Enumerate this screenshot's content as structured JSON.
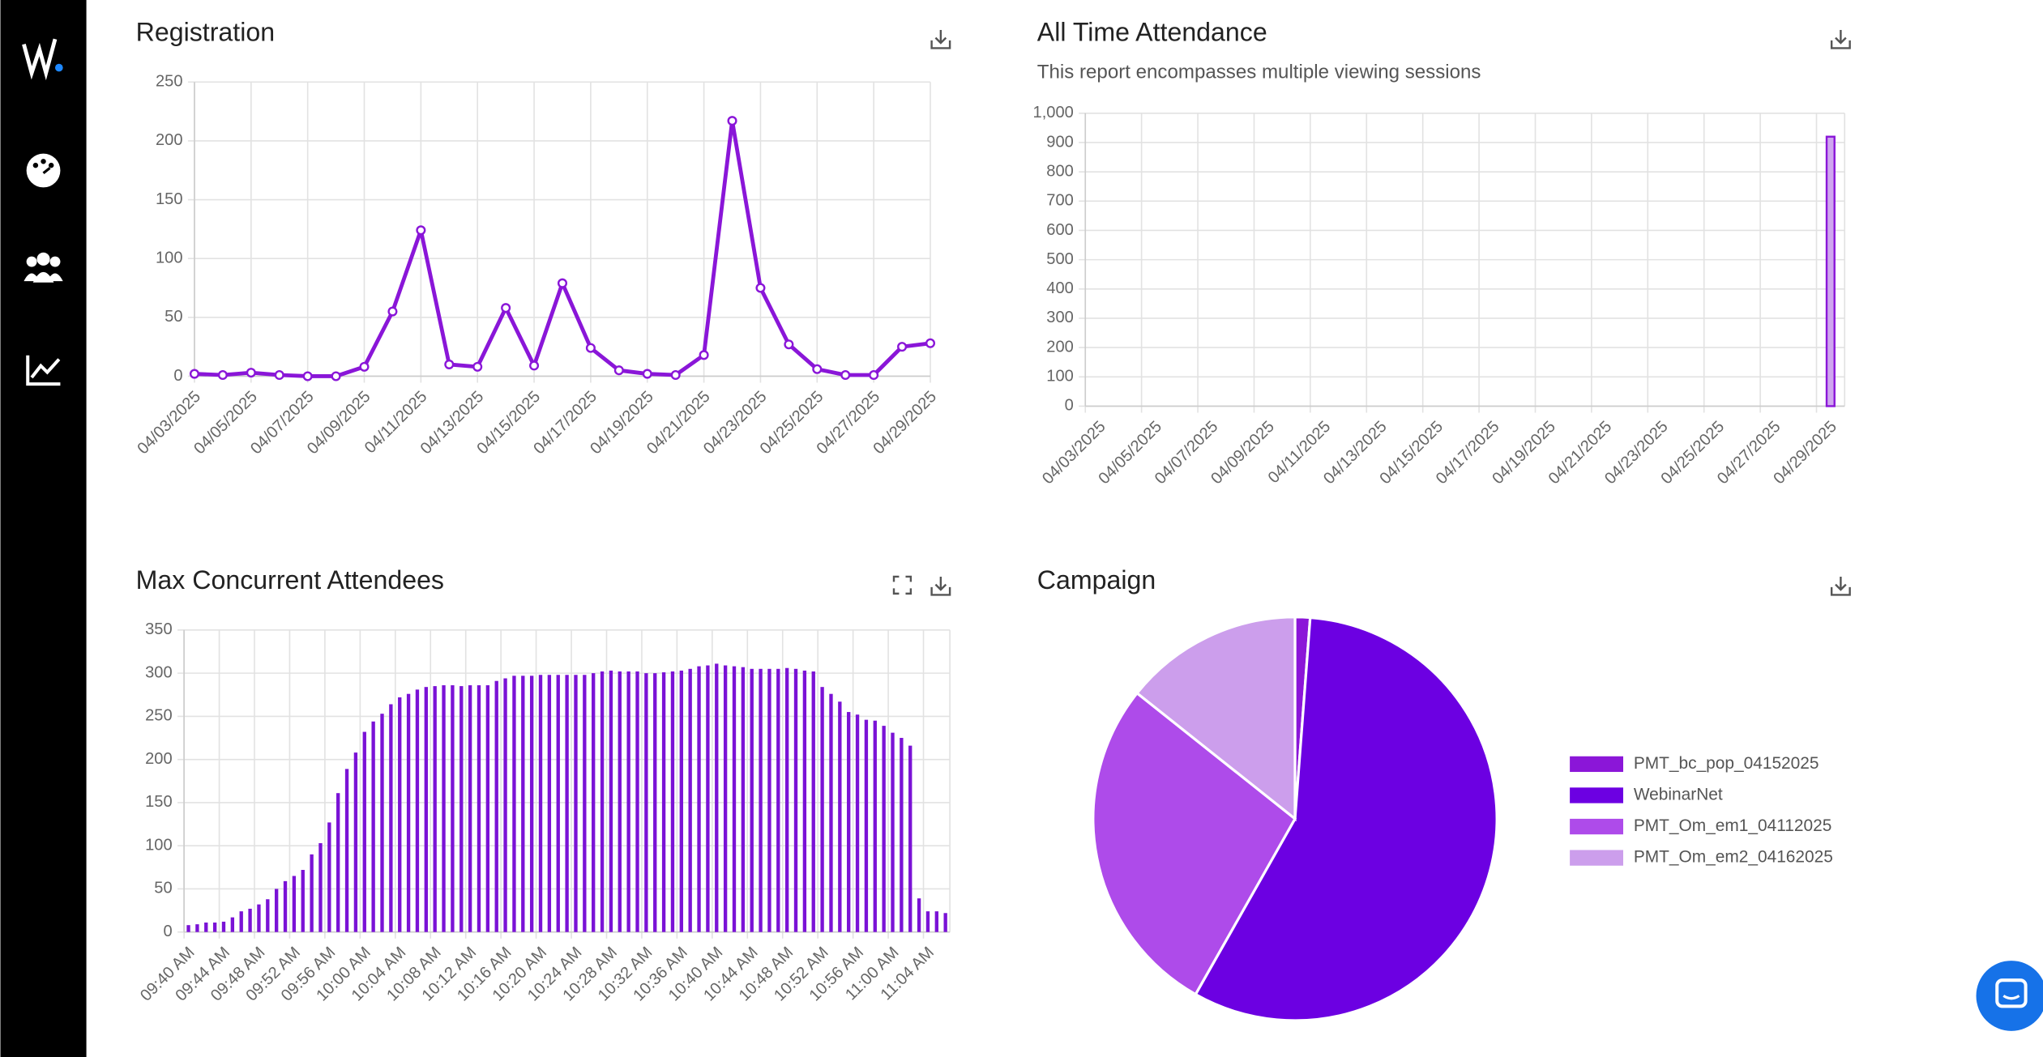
{
  "chart_data": [
    {
      "type": "line",
      "title": "Registration",
      "categories": [
        "04/03/2025",
        null,
        "04/05/2025",
        null,
        "04/07/2025",
        null,
        "04/09/2025",
        null,
        "04/11/2025",
        null,
        "04/13/2025",
        null,
        "04/15/2025",
        null,
        "04/17/2025",
        null,
        "04/19/2025",
        null,
        "04/21/2025",
        null,
        "04/23/2025",
        null,
        "04/25/2025",
        null,
        "04/27/2025",
        null,
        "04/29/2025"
      ],
      "values": [
        2,
        1,
        3,
        1,
        0,
        0,
        8,
        55,
        124,
        10,
        8,
        58,
        9,
        79,
        24,
        5,
        2,
        1,
        18,
        217,
        75,
        27,
        6,
        1,
        1,
        25,
        28
      ],
      "color": "#8a16d8",
      "ylim": [
        0,
        250
      ],
      "yticks": [
        0,
        50,
        100,
        150,
        200,
        250
      ],
      "grid": true
    },
    {
      "type": "bar",
      "title": "All Time Attendance",
      "subtitle": "This report encompasses multiple viewing sessions",
      "categories": [
        "04/03/2025",
        null,
        "04/05/2025",
        null,
        "04/07/2025",
        null,
        "04/09/2025",
        null,
        "04/11/2025",
        null,
        "04/13/2025",
        null,
        "04/15/2025",
        null,
        "04/17/2025",
        null,
        "04/19/2025",
        null,
        "04/21/2025",
        null,
        "04/23/2025",
        null,
        "04/25/2025",
        null,
        "04/27/2025",
        null,
        "04/29/2025"
      ],
      "values": [
        0,
        0,
        0,
        0,
        0,
        0,
        0,
        0,
        0,
        0,
        0,
        0,
        0,
        0,
        0,
        0,
        0,
        0,
        0,
        0,
        0,
        0,
        0,
        0,
        0,
        0,
        920
      ],
      "color": "#8a16d8",
      "fill": "#cfa6ef",
      "ylim": [
        0,
        1000
      ],
      "yticks": [
        0,
        100,
        200,
        300,
        400,
        500,
        600,
        700,
        800,
        900,
        {
          "value": 1000,
          "label": "1,000"
        }
      ],
      "grid": true
    },
    {
      "type": "bar",
      "title": "Max Concurrent Attendees",
      "categories": [
        "09:40 AM",
        null,
        null,
        null,
        "09:44 AM",
        null,
        null,
        null,
        "09:48 AM",
        null,
        null,
        null,
        "09:52 AM",
        null,
        null,
        null,
        "09:56 AM",
        null,
        null,
        null,
        "10:00 AM",
        null,
        null,
        null,
        "10:04 AM",
        null,
        null,
        null,
        "10:08 AM",
        null,
        null,
        null,
        "10:12 AM",
        null,
        null,
        null,
        "10:16 AM",
        null,
        null,
        null,
        "10:20 AM",
        null,
        null,
        null,
        "10:24 AM",
        null,
        null,
        null,
        "10:28 AM",
        null,
        null,
        null,
        "10:32 AM",
        null,
        null,
        null,
        "10:36 AM",
        null,
        null,
        null,
        "10:40 AM",
        null,
        null,
        null,
        "10:44 AM",
        null,
        null,
        null,
        "10:48 AM",
        null,
        null,
        null,
        "10:52 AM",
        null,
        null,
        null,
        "10:56 AM",
        null,
        null,
        null,
        "11:00 AM",
        null,
        null,
        null,
        "11:04 AM",
        null,
        null
      ],
      "values": [
        8,
        9,
        11,
        11,
        12,
        17,
        24,
        27,
        32,
        38,
        50,
        59,
        65,
        72,
        90,
        103,
        127,
        161,
        189,
        208,
        232,
        244,
        253,
        264,
        272,
        276,
        281,
        284,
        285,
        286,
        286,
        285,
        286,
        286,
        286,
        291,
        294,
        297,
        297,
        297,
        298,
        298,
        298,
        298,
        298,
        298,
        300,
        302,
        303,
        302,
        302,
        302,
        300,
        300,
        301,
        302,
        303,
        305,
        308,
        309,
        311,
        309,
        308,
        307,
        305,
        305,
        305,
        305,
        306,
        305,
        303,
        302,
        284,
        276,
        267,
        255,
        252,
        246,
        245,
        239,
        231,
        225,
        216,
        39,
        24,
        24,
        22
      ],
      "color": "#7a12d6",
      "ylim": [
        0,
        350
      ],
      "yticks": [
        0,
        50,
        100,
        150,
        200,
        250,
        300,
        350
      ],
      "grid": true
    },
    {
      "type": "pie",
      "title": "Campaign",
      "categories": [
        "PMT_bc_pop_04152025",
        "WebinarNet",
        "PMT_Om_em1_04112025",
        "PMT_Om_em2_04162025"
      ],
      "values": [
        1.2,
        57,
        27.5,
        14.3
      ],
      "colors": [
        "#8b16d8",
        "#6c00e2",
        "#ae4bea",
        "#cc9eec"
      ],
      "legend": "right"
    }
  ]
}
